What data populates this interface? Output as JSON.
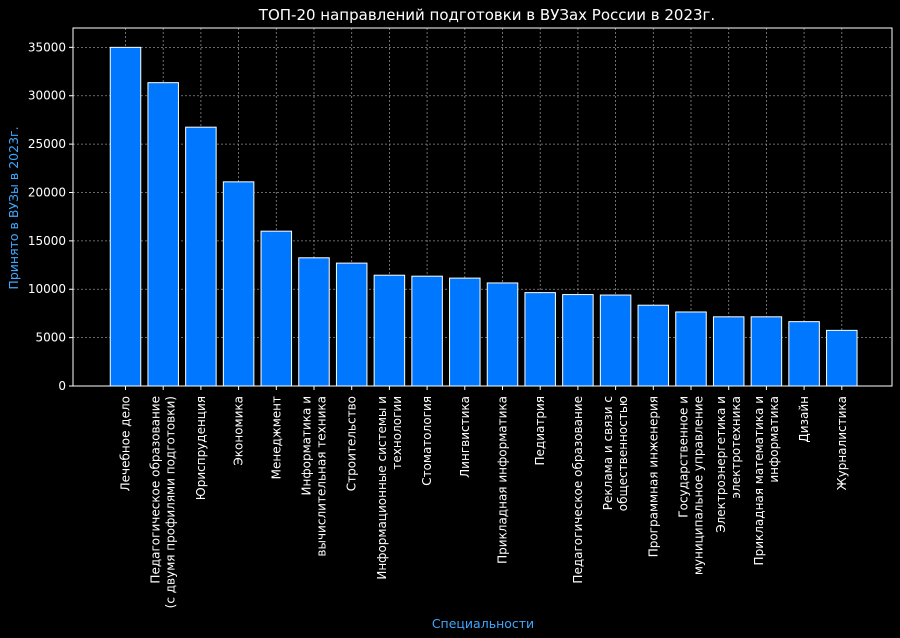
{
  "chart_data": {
    "type": "bar",
    "title": "ТОП-20 направлений подготовки в ВУЗах России в 2023г.",
    "xlabel": "Специальности",
    "ylabel": "Принято в ВУЗы в 2023г.",
    "ylim": [
      0,
      37000
    ],
    "yticks": [
      0,
      5000,
      10000,
      15000,
      20000,
      25000,
      30000,
      35000
    ],
    "grid": true,
    "colors": {
      "bar": "#0077ff",
      "edge": "#ffffff",
      "grid": "#8a8a8a",
      "background": "#000000",
      "axis_title": "#3fa7ff"
    },
    "categories": [
      {
        "lines": [
          "Лечебное дело"
        ]
      },
      {
        "lines": [
          "Педагогическое образование",
          "(с двумя профилями подготовки)"
        ]
      },
      {
        "lines": [
          "Юриспруденция"
        ]
      },
      {
        "lines": [
          "Экономика"
        ]
      },
      {
        "lines": [
          "Менеджмент"
        ]
      },
      {
        "lines": [
          "Информатика и",
          "вычислительная техника"
        ]
      },
      {
        "lines": [
          "Строительство"
        ]
      },
      {
        "lines": [
          "Информационные системы и",
          "технологии"
        ]
      },
      {
        "lines": [
          "Стоматология"
        ]
      },
      {
        "lines": [
          "Лингвистика"
        ]
      },
      {
        "lines": [
          "Прикладная информатика"
        ]
      },
      {
        "lines": [
          "Педиатрия"
        ]
      },
      {
        "lines": [
          "Педагогическое образование"
        ]
      },
      {
        "lines": [
          "Реклама и связи с",
          "общественностью"
        ]
      },
      {
        "lines": [
          "Программная инженерия"
        ]
      },
      {
        "lines": [
          "Государственное и",
          "муниципальное управление"
        ]
      },
      {
        "lines": [
          "Электроэнергетика и",
          "электротехника"
        ]
      },
      {
        "lines": [
          "Прикладная математика и",
          "информатика"
        ]
      },
      {
        "lines": [
          "Дизайн"
        ]
      },
      {
        "lines": [
          "Журналистика"
        ]
      }
    ],
    "values": [
      35000,
      31350,
      26750,
      21100,
      16000,
      13250,
      12700,
      11450,
      11350,
      11150,
      10650,
      9650,
      9450,
      9400,
      8350,
      7650,
      7150,
      7150,
      6650,
      5750
    ]
  }
}
